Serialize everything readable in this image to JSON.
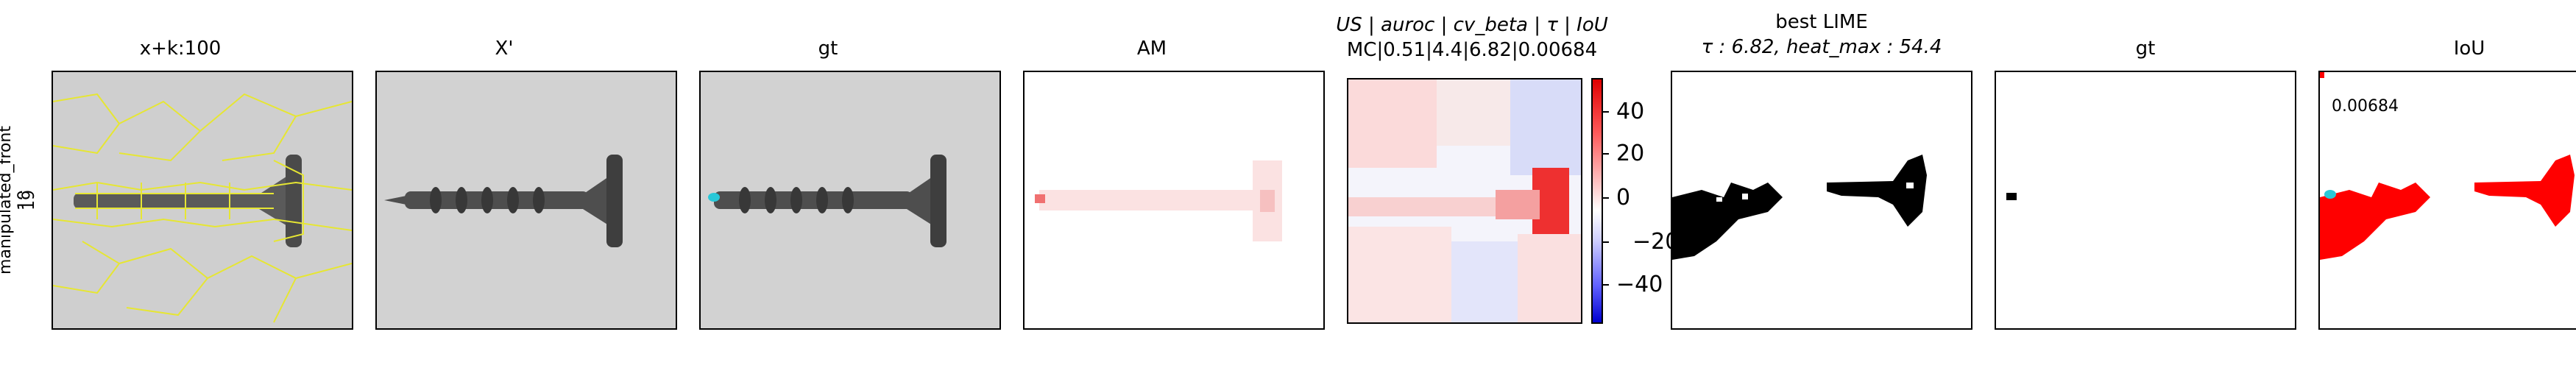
{
  "row_label": {
    "line1": "manipulated_front",
    "line2": "19"
  },
  "panels": {
    "p1": {
      "title": "x+k:100"
    },
    "p2": {
      "title": "X'"
    },
    "p3": {
      "title": "gt"
    },
    "p4": {
      "title": "AM"
    },
    "p5": {
      "title_line1": "US | auroc | cv_beta | τ | IoU",
      "title_line2": "MC|0.51|4.4|6.82|0.00684"
    },
    "p6": {
      "title_line1": "best LIME",
      "title_line2": "τ : 6.82, heat_max : 54.4"
    },
    "p7": {
      "title": "gt"
    },
    "p8": {
      "title": "IoU",
      "annotation": "0.00684"
    }
  },
  "colorbar": {
    "ticks": [
      "40",
      "20",
      "0",
      "−20",
      "−40"
    ]
  },
  "colors": {
    "superpixel_outline": "#e6e633",
    "anomaly_marker": "#29c8d8",
    "heat_positive": "#e00000",
    "heat_negative": "#2020e0"
  }
}
